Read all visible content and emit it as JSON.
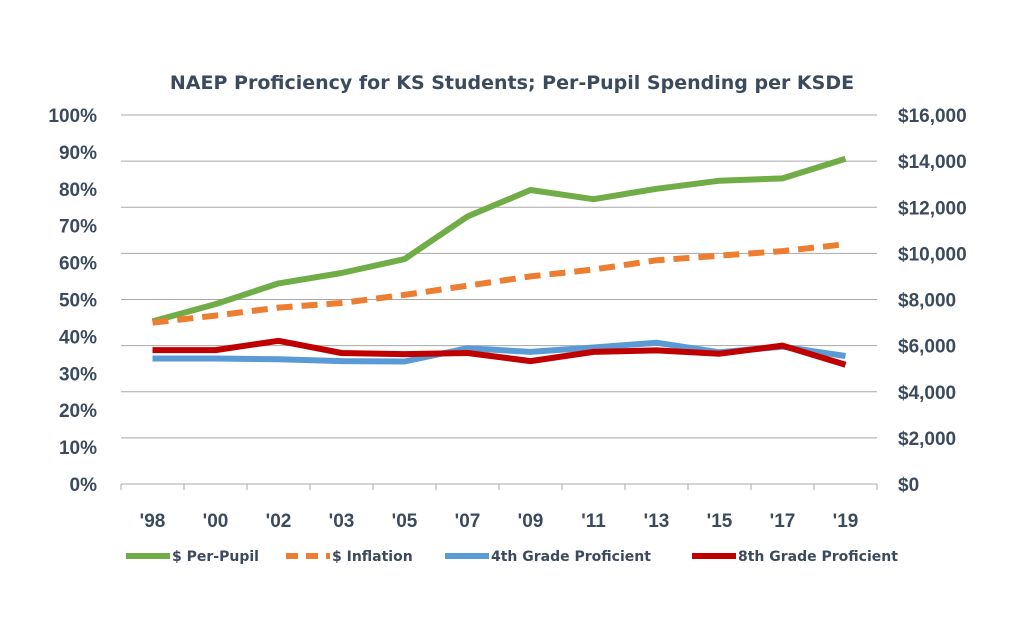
{
  "chart_data": {
    "type": "line",
    "title": "NAEP Proficiency for KS Students; Per-Pupil Spending per KSDE",
    "categories": [
      "'98",
      "'00",
      "'02",
      "'03",
      "'05",
      "'07",
      "'09",
      "'11",
      "'13",
      "'15",
      "'17",
      "'19"
    ],
    "left_axis": {
      "ticks": [
        "0%",
        "10%",
        "20%",
        "30%",
        "40%",
        "50%",
        "60%",
        "70%",
        "80%",
        "90%",
        "100%"
      ],
      "ylim": [
        0,
        100
      ]
    },
    "right_axis": {
      "ticks": [
        "$0",
        "$2,000",
        "$4,000",
        "$6,000",
        "$8,000",
        "$10,000",
        "$12,000",
        "$14,000",
        "$16,000"
      ],
      "ylim": [
        0,
        16000
      ]
    },
    "grid": true,
    "legend_position": "bottom",
    "series": [
      {
        "name": "$ Per-Pupil",
        "axis": "right",
        "color": "#70ad47",
        "style": "solid",
        "values": [
          7050,
          7800,
          8700,
          9150,
          9750,
          11600,
          12750,
          12350,
          12800,
          13150,
          13250,
          14100
        ]
      },
      {
        "name": "$ Inflation",
        "axis": "right",
        "color": "#ed7d31",
        "style": "dashed",
        "values": [
          7000,
          7300,
          7650,
          7850,
          8200,
          8600,
          9000,
          9300,
          9700,
          9900,
          10100,
          10400
        ]
      },
      {
        "name": "4th Grade Proficient",
        "axis": "left",
        "color": "#5b9bd5",
        "style": "solid",
        "values": [
          34,
          34,
          33.8,
          33.3,
          33.2,
          36.8,
          35.8,
          37,
          38.3,
          35.7,
          37.2,
          34.7
        ]
      },
      {
        "name": "8th Grade Proficient",
        "axis": "left",
        "color": "#c00000",
        "style": "solid",
        "values": [
          36.3,
          36.3,
          38.8,
          35.5,
          35.2,
          35.5,
          33.3,
          35.8,
          36.2,
          35.3,
          37.5,
          32.3
        ]
      }
    ]
  }
}
